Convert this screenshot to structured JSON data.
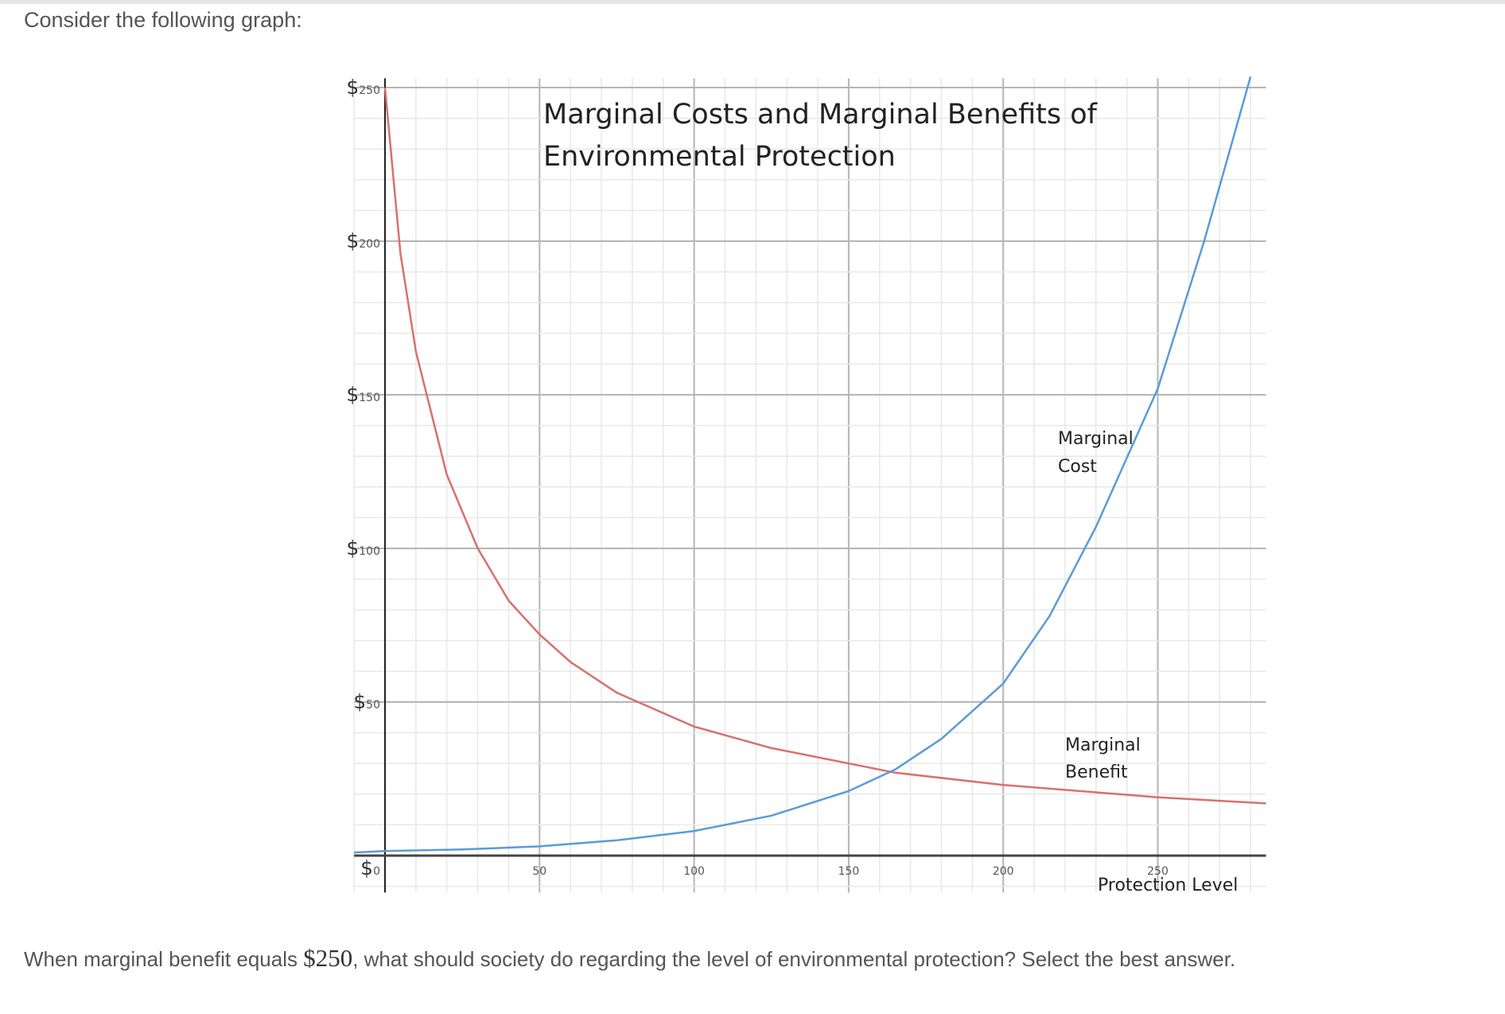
{
  "prompt": "Consider the following graph:",
  "question": {
    "before": "When marginal benefit equals ",
    "amount": "$250",
    "after": ", what should society do regarding the level of environmental protection? Select the best answer."
  },
  "chart_data": {
    "type": "line",
    "title_line1": "Marginal Costs and Marginal Benefits of",
    "title_line2": "Environmental Protection",
    "xlabel": "Protection Level",
    "ylabel": "",
    "xlim": [
      -10,
      285
    ],
    "ylim": [
      -12,
      253
    ],
    "grid": true,
    "x_ticks": [
      "50",
      "100",
      "150",
      "200",
      "250"
    ],
    "x_tick_values": [
      50,
      100,
      150,
      200,
      250
    ],
    "y_tick_prefix": "$",
    "y_ticks": [
      "0",
      "50",
      "100",
      "150",
      "200",
      "250"
    ],
    "y_tick_values": [
      0,
      50,
      100,
      150,
      200,
      250
    ],
    "series": [
      {
        "name": "Marginal Benefit",
        "label_line1": "Marginal",
        "label_line2": "Benefit",
        "color": "#d9706c",
        "x": [
          0,
          5,
          10,
          20,
          30,
          40,
          50,
          60,
          75,
          100,
          125,
          150,
          165,
          200,
          250,
          285
        ],
        "y": [
          250,
          196,
          164,
          124,
          100,
          83,
          72,
          63,
          53,
          42,
          35,
          30,
          27,
          23,
          19,
          17
        ]
      },
      {
        "name": "Marginal Cost",
        "label_line1": "Marginal",
        "label_line2": "Cost",
        "color": "#5b9bd5",
        "x": [
          -10,
          0,
          25,
          50,
          75,
          100,
          125,
          150,
          165,
          180,
          200,
          215,
          230,
          250,
          265,
          280
        ],
        "y": [
          1,
          1.5,
          2,
          3,
          5,
          8,
          13,
          21,
          28,
          38,
          56,
          78,
          107,
          152,
          200,
          258
        ]
      }
    ]
  }
}
